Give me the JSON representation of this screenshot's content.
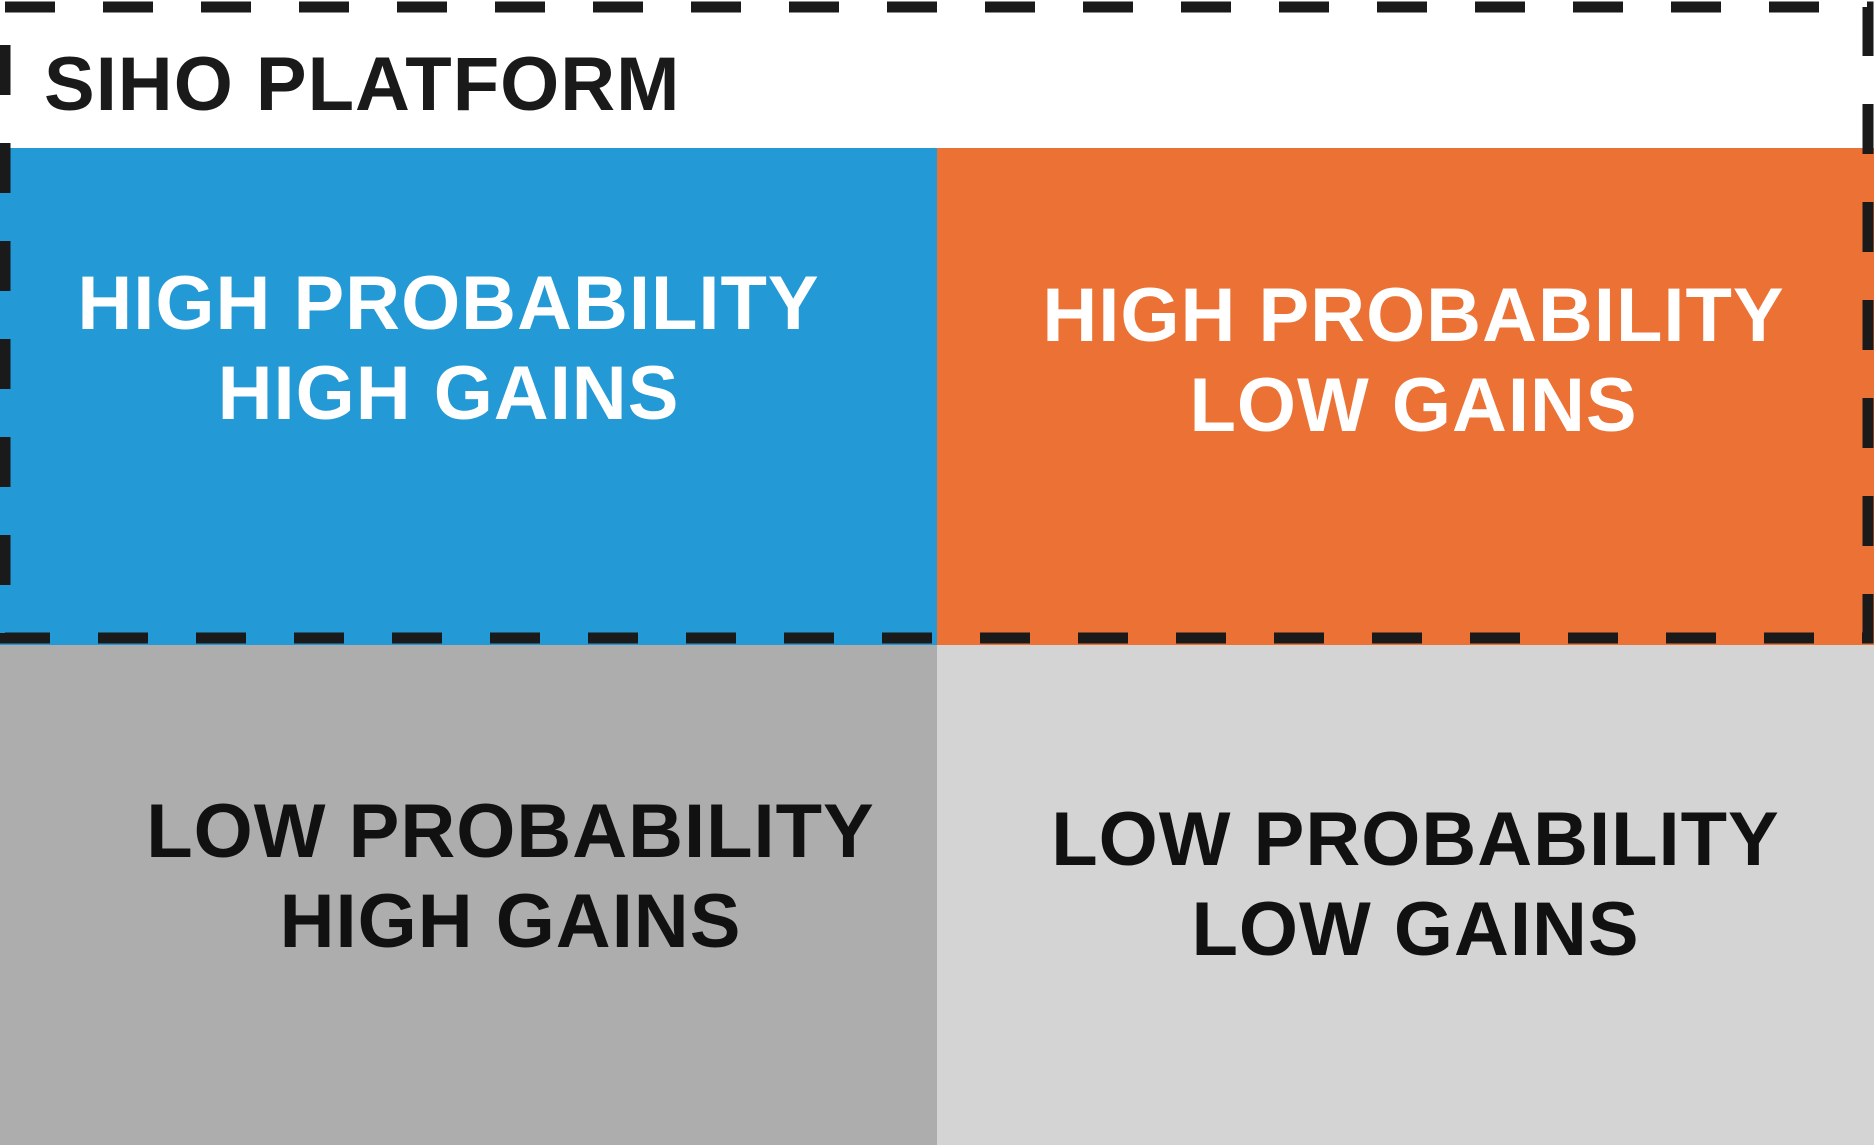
{
  "title": "SIHO PLATFORM",
  "quadrants": {
    "top_left": {
      "line1": "HIGH PROBABILITY",
      "line2": "HIGH GAINS",
      "color": "#2399D6"
    },
    "top_right": {
      "line1": "HIGH PROBABILITY",
      "line2": "LOW GAINS",
      "color": "#EB7234"
    },
    "bottom_left": {
      "line1": "LOW PROBABILITY",
      "line2": "HIGH GAINS",
      "color": "#ADADAD"
    },
    "bottom_right": {
      "line1": "LOW PROBABILITY",
      "line2": "LOW GAINS",
      "color": "#D4D4D4"
    }
  },
  "colors": {
    "dash": "#1a1a1a",
    "background": "#ffffff"
  }
}
